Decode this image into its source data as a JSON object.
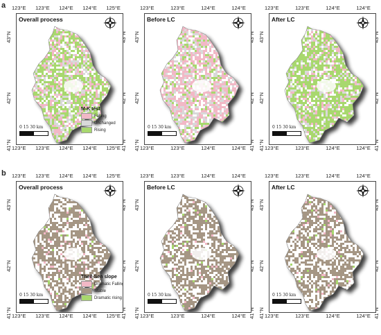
{
  "rows": [
    {
      "label": "a",
      "legend": {
        "title": "M-K test",
        "items": [
          {
            "label": "Falling",
            "color": "#f2b8c6"
          },
          {
            "label": "Unchanged",
            "color": "#d9d9d9"
          },
          {
            "label": "Rising",
            "color": "#a8d86e"
          }
        ]
      },
      "panels": [
        {
          "title": "Overall process",
          "xticks_top": [
            "123°E",
            "123°E",
            "124°E",
            "124°E",
            "125°E"
          ],
          "xticks_bottom": [
            "123°E",
            "123°E",
            "124°E",
            "124°E",
            "125°E"
          ],
          "yticks_left": [
            "43°N",
            "42°N",
            "41°N"
          ],
          "yticks_right": [
            "43°N",
            "42°N",
            "41°N"
          ],
          "pattern": "mk-overall"
        },
        {
          "title": "Before LC",
          "xticks_top": [
            "123°E",
            "123°E",
            "124°E",
            "124°E"
          ],
          "xticks_bottom": [
            "123°E",
            "123°E",
            "124°E",
            "124°E"
          ],
          "yticks_left": [
            "43°N",
            "42°N",
            "41°N"
          ],
          "yticks_right": [
            "43°N",
            "42°N",
            "41°N"
          ],
          "pattern": "mk-before"
        },
        {
          "title": "After LC",
          "xticks_top": [
            "123°E",
            "123°E",
            "124°E",
            "124°E"
          ],
          "xticks_bottom": [
            "123°E",
            "123°E",
            "124°E",
            "124°E"
          ],
          "yticks_left": [
            "43°N",
            "42°N",
            "41°N"
          ],
          "yticks_right": [
            "43°N",
            "42°N",
            "41°N"
          ],
          "pattern": "mk-after"
        }
      ]
    },
    {
      "label": "b",
      "legend": {
        "title": "Theil-Sen slope",
        "items": [
          {
            "label": "Dramatic Falling",
            "color": "#f2b8c6"
          },
          {
            "label": "Stable",
            "color": "#a59684"
          },
          {
            "label": "Dramatic rising",
            "color": "#a8d86e"
          }
        ]
      },
      "panels": [
        {
          "title": "Overall process",
          "xticks_top": [
            "123°E",
            "123°E",
            "124°E",
            "124°E",
            "125°E"
          ],
          "xticks_bottom": [
            "123°E",
            "123°E",
            "124°E",
            "124°E",
            "125°E"
          ],
          "yticks_left": [
            "43°N",
            "42°N",
            "41°N"
          ],
          "yticks_right": [
            "43°N",
            "42°N",
            "41°N"
          ],
          "pattern": "ts"
        },
        {
          "title": "Before LC",
          "xticks_top": [
            "123°E",
            "123°E",
            "124°E",
            "124°E"
          ],
          "xticks_bottom": [
            "123°E",
            "123°E",
            "124°E",
            "124°E"
          ],
          "yticks_left": [
            "43°N",
            "42°N",
            "41°N"
          ],
          "yticks_right": [
            "43°N",
            "42°N",
            "41°N"
          ],
          "pattern": "ts"
        },
        {
          "title": "After LC",
          "xticks_top": [
            "123°E",
            "123°E",
            "124°E",
            "124°E"
          ],
          "xticks_bottom": [
            "123°E",
            "123°E",
            "124°E",
            "124°E"
          ],
          "yticks_left": [
            "43°N",
            "42°N",
            "41°N"
          ],
          "yticks_right": [
            "43°N",
            "42°N",
            "41°N"
          ],
          "pattern": "ts"
        }
      ]
    }
  ],
  "scale": {
    "numbers": "0  15  30  km"
  },
  "compass": {
    "icon": "north-arrow-compass-icon"
  }
}
